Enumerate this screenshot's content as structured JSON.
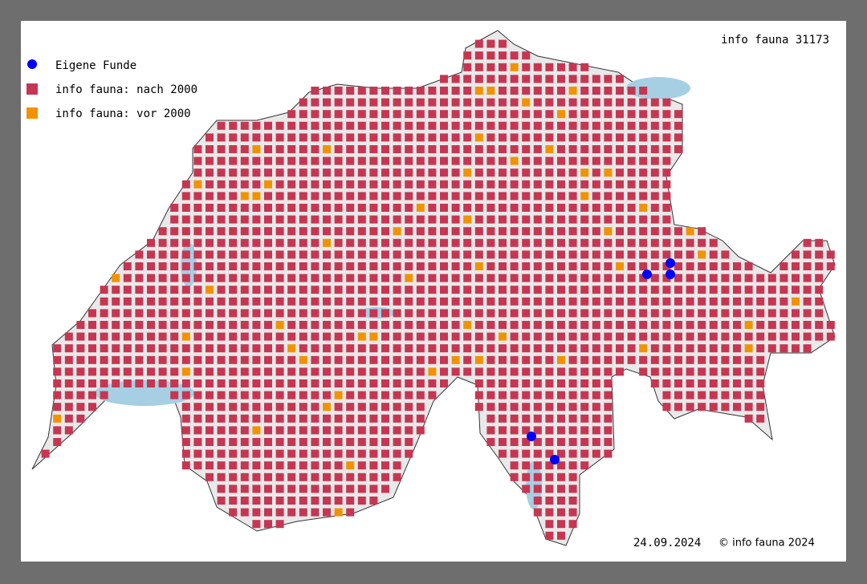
{
  "header": {
    "title": "info fauna 31173"
  },
  "legend": {
    "items": [
      {
        "label": "Eigene Funde",
        "color": "#0000ff"
      },
      {
        "label": "info fauna: nach 2000",
        "color": "#c63652"
      },
      {
        "label": "info fauna: vor 2000",
        "color": "#f39200"
      }
    ]
  },
  "footer": {
    "date": "24.09.2024",
    "copyright": "© info fauna 2024"
  }
}
